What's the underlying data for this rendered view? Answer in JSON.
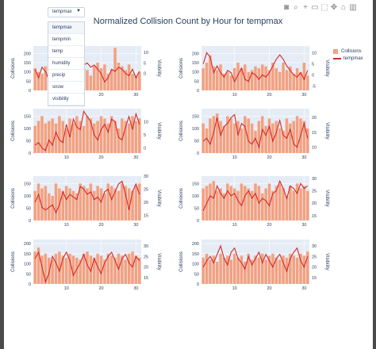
{
  "title": "Normalized Collision Count by Hour for tempmax",
  "dropdown": {
    "selected": "tempmax",
    "arrow": "▼",
    "options": [
      "tempmax",
      "tempmin",
      "temp",
      "humidity",
      "precip",
      "snow",
      "visibility"
    ]
  },
  "legend": {
    "bar_label": "Collisions",
    "line_label": "tempmax"
  },
  "colors": {
    "bar": "#f4a07e",
    "line": "#d62728",
    "plot_bg": "#e5ecf6",
    "grid": "#ffffff"
  },
  "modebar_icons": [
    "camera-icon",
    "zoom-icon",
    "plus-icon",
    "minus-icon",
    "box-icon",
    "pan-icon",
    "home-icon",
    "plotly-icon"
  ],
  "chart_data": [
    {
      "type": "bar",
      "y1label": "Collisions",
      "y2label": "Visibility",
      "y1_ticks": [
        0,
        50,
        100,
        150,
        200
      ],
      "y1lim": [
        0,
        240
      ],
      "y2_ticks": [
        0,
        5,
        10
      ],
      "y2lim": [
        -8,
        13
      ],
      "x_ticks": [
        10,
        20,
        30
      ],
      "xlim": [
        0.5,
        31.5
      ],
      "x": [
        1,
        2,
        3,
        4,
        5,
        6,
        7,
        8,
        9,
        10,
        11,
        12,
        13,
        14,
        15,
        16,
        17,
        18,
        19,
        20,
        21,
        22,
        23,
        24,
        25,
        26,
        27,
        28,
        29,
        30,
        31
      ],
      "collisions": [
        120,
        100,
        90,
        130,
        140,
        80,
        60,
        100,
        110,
        140,
        150,
        130,
        90,
        100,
        120,
        110,
        80,
        130,
        150,
        120,
        140,
        90,
        110,
        230,
        150,
        130,
        110,
        140,
        90,
        80,
        100
      ],
      "series_line": [
        2,
        -2,
        3,
        1,
        -3,
        -2,
        1,
        0,
        4,
        1,
        -1,
        -2,
        -3,
        -2,
        4,
        5,
        3,
        4,
        2,
        0,
        -4,
        -2,
        2,
        1,
        3,
        2,
        0,
        -1,
        2,
        -2,
        1
      ]
    },
    {
      "type": "bar",
      "y1label": "Collisions",
      "y2label": "Visibility",
      "y1_ticks": [
        0,
        50,
        100,
        150,
        200
      ],
      "y1lim": [
        0,
        240
      ],
      "y2_ticks": [
        -5,
        0,
        5,
        10
      ],
      "y2lim": [
        -7,
        13
      ],
      "x_ticks": [
        10,
        20,
        30
      ],
      "xlim": [
        0.5,
        31.5
      ],
      "x": [
        1,
        2,
        3,
        4,
        5,
        6,
        7,
        8,
        9,
        10,
        11,
        12,
        13,
        14,
        15,
        16,
        17,
        18,
        19,
        20,
        21,
        22,
        23,
        24,
        25,
        26,
        27,
        28,
        29,
        30,
        31
      ],
      "collisions": [
        120,
        150,
        190,
        130,
        110,
        140,
        90,
        100,
        80,
        120,
        150,
        120,
        140,
        100,
        110,
        130,
        120,
        140,
        130,
        110,
        150,
        120,
        100,
        150,
        110,
        130,
        90,
        120,
        100,
        150,
        80
      ],
      "series_line": [
        5,
        10,
        8,
        1,
        4,
        1,
        -1,
        2,
        1,
        -3,
        0,
        3,
        -2,
        -3,
        1,
        0,
        -2,
        0,
        -1,
        1,
        4,
        7,
        9,
        7,
        4,
        2,
        0,
        -1,
        1,
        -2,
        2
      ]
    },
    {
      "type": "bar",
      "y1label": "Collisions",
      "y2label": "Visibility",
      "y1_ticks": [
        0,
        50,
        100,
        150
      ],
      "y1lim": [
        0,
        180
      ],
      "y2_ticks": [
        0,
        5,
        10
      ],
      "y2lim": [
        -2,
        15
      ],
      "x_ticks": [
        10,
        20,
        30
      ],
      "xlim": [
        0.5,
        31.5
      ],
      "x": [
        1,
        2,
        3,
        4,
        5,
        6,
        7,
        8,
        9,
        10,
        11,
        12,
        13,
        14,
        15,
        16,
        17,
        18,
        19,
        20,
        21,
        22,
        23,
        24,
        25,
        26,
        27,
        28,
        29,
        30,
        31
      ],
      "collisions": [
        110,
        130,
        150,
        120,
        130,
        140,
        120,
        150,
        130,
        100,
        140,
        120,
        150,
        130,
        110,
        150,
        140,
        120,
        130,
        150,
        140,
        120,
        150,
        130,
        100,
        140,
        130,
        120,
        150,
        130,
        140
      ],
      "series_line": [
        1,
        2,
        0,
        -1,
        3,
        1,
        6,
        3,
        2,
        9,
        4,
        11,
        8,
        7,
        14,
        12,
        10,
        5,
        3,
        7,
        9,
        6,
        11,
        10,
        4,
        3,
        8,
        12,
        7,
        13,
        9
      ]
    },
    {
      "type": "bar",
      "y1label": "Collisions",
      "y2label": "Visibility",
      "y1_ticks": [
        0,
        50,
        100,
        150
      ],
      "y1lim": [
        0,
        180
      ],
      "y2_ticks": [
        10,
        15,
        20
      ],
      "y2lim": [
        8,
        23
      ],
      "x_ticks": [
        10,
        20,
        30
      ],
      "xlim": [
        0.5,
        31.5
      ],
      "x": [
        1,
        2,
        3,
        4,
        5,
        6,
        7,
        8,
        9,
        10,
        11,
        12,
        13,
        14,
        15,
        16,
        17,
        18,
        19,
        20,
        21,
        22,
        23,
        24,
        25,
        26,
        27,
        28,
        29,
        30,
        31
      ],
      "collisions": [
        120,
        100,
        140,
        150,
        160,
        130,
        110,
        150,
        140,
        120,
        130,
        100,
        150,
        140,
        120,
        90,
        130,
        150,
        110,
        140,
        120,
        130,
        100,
        90,
        140,
        120,
        130,
        150,
        140,
        130,
        100
      ],
      "series_line": [
        12,
        13,
        11,
        15,
        20,
        14,
        17,
        18,
        20,
        21,
        14,
        18,
        17,
        12,
        11,
        13,
        10,
        16,
        14,
        17,
        12,
        15,
        19,
        14,
        13,
        16,
        11,
        10,
        14,
        18,
        13
      ]
    },
    {
      "type": "bar",
      "y1label": "Collisions",
      "y2label": "Visibility",
      "y1_ticks": [
        0,
        50,
        100,
        150
      ],
      "y1lim": [
        0,
        180
      ],
      "y2_ticks": [
        15,
        20,
        25,
        30
      ],
      "y2lim": [
        13,
        30
      ],
      "x_ticks": [
        10,
        20,
        30
      ],
      "xlim": [
        0.5,
        31.5
      ],
      "x": [
        1,
        2,
        3,
        4,
        5,
        6,
        7,
        8,
        9,
        10,
        11,
        12,
        13,
        14,
        15,
        16,
        17,
        18,
        19,
        20,
        21,
        22,
        23,
        24,
        25,
        26,
        27,
        28,
        29,
        30,
        31
      ],
      "collisions": [
        120,
        150,
        130,
        140,
        110,
        100,
        150,
        130,
        120,
        140,
        130,
        120,
        110,
        150,
        140,
        130,
        150,
        120,
        140,
        130,
        110,
        150,
        140,
        130,
        120,
        150,
        140,
        130,
        120,
        140,
        150
      ],
      "series_line": [
        20,
        23,
        18,
        17,
        18,
        19,
        16,
        19,
        24,
        21,
        23,
        22,
        21,
        26,
        25,
        23,
        24,
        21,
        22,
        20,
        24,
        25,
        21,
        24,
        27,
        28,
        23,
        17,
        24,
        27,
        23
      ]
    },
    {
      "type": "bar",
      "y1label": "Collisions",
      "y2label": "Visibility",
      "y1_ticks": [
        0,
        50,
        100,
        150
      ],
      "y1lim": [
        0,
        180
      ],
      "y2_ticks": [
        15,
        20,
        25,
        30
      ],
      "y2lim": [
        13,
        31
      ],
      "x_ticks": [
        10,
        20,
        30
      ],
      "xlim": [
        0.5,
        31.5
      ],
      "x": [
        1,
        2,
        3,
        4,
        5,
        6,
        7,
        8,
        9,
        10,
        11,
        12,
        13,
        14,
        15,
        16,
        17,
        18,
        19,
        20,
        21,
        22,
        23,
        24,
        25,
        26,
        27,
        28,
        29,
        30,
        31
      ],
      "collisions": [
        130,
        140,
        150,
        160,
        120,
        130,
        110,
        150,
        140,
        130,
        120,
        150,
        140,
        130,
        120,
        150,
        140,
        110,
        130,
        150,
        120,
        140,
        150,
        130,
        100,
        140,
        120,
        150,
        130,
        140,
        120
      ],
      "series_line": [
        17,
        20,
        23,
        22,
        27,
        24,
        22,
        25,
        23,
        24,
        21,
        19,
        23,
        25,
        22,
        24,
        20,
        22,
        21,
        19,
        24,
        25,
        29,
        26,
        22,
        27,
        26,
        24,
        28,
        26,
        27
      ]
    },
    {
      "type": "bar",
      "y1label": "Collisions",
      "y2label": "Visibility",
      "y1_ticks": [
        0,
        50,
        100,
        150,
        200
      ],
      "y1lim": [
        0,
        220
      ],
      "y2_ticks": [
        15,
        20,
        25,
        30
      ],
      "y2lim": [
        12,
        33
      ],
      "x_ticks": [
        10,
        20,
        30
      ],
      "xlim": [
        0.5,
        31.5
      ],
      "x": [
        1,
        2,
        3,
        4,
        5,
        6,
        7,
        8,
        9,
        10,
        11,
        12,
        13,
        14,
        15,
        16,
        17,
        18,
        19,
        20,
        21,
        22,
        23,
        24,
        25,
        26,
        27,
        28,
        29,
        30,
        31
      ],
      "collisions": [
        160,
        180,
        140,
        150,
        130,
        120,
        150,
        160,
        140,
        130,
        150,
        140,
        130,
        120,
        150,
        160,
        140,
        130,
        150,
        140,
        120,
        150,
        140,
        130,
        150,
        140,
        120,
        150,
        160,
        140,
        130
      ],
      "series_line": [
        24,
        27,
        20,
        13,
        17,
        25,
        22,
        18,
        24,
        27,
        23,
        16,
        19,
        22,
        26,
        21,
        18,
        24,
        20,
        17,
        22,
        25,
        27,
        23,
        19,
        24,
        26,
        22,
        20,
        25,
        23
      ]
    },
    {
      "type": "bar",
      "y1label": "Collisions",
      "y2label": "Visibility",
      "y1_ticks": [
        0,
        50,
        100,
        150,
        200
      ],
      "y1lim": [
        0,
        220
      ],
      "y2_ticks": [
        15,
        20,
        25,
        30
      ],
      "y2lim": [
        12,
        33
      ],
      "x_ticks": [
        10,
        20,
        30
      ],
      "xlim": [
        0.5,
        31.5
      ],
      "x": [
        1,
        2,
        3,
        4,
        5,
        6,
        7,
        8,
        9,
        10,
        11,
        12,
        13,
        14,
        15,
        16,
        17,
        18,
        19,
        20,
        21,
        22,
        23,
        24,
        25,
        26,
        27,
        28,
        29,
        30,
        31
      ],
      "collisions": [
        130,
        150,
        120,
        140,
        110,
        150,
        130,
        140,
        120,
        150,
        130,
        140,
        110,
        150,
        120,
        140,
        130,
        150,
        120,
        140,
        150,
        130,
        120,
        140,
        130,
        150,
        140,
        130,
        150,
        140,
        160
      ],
      "series_line": [
        20,
        23,
        25,
        22,
        26,
        30,
        24,
        21,
        27,
        29,
        24,
        22,
        19,
        25,
        21,
        24,
        27,
        22,
        26,
        23,
        20,
        24,
        26,
        22,
        18,
        24,
        27,
        29,
        23,
        20,
        25
      ]
    }
  ]
}
